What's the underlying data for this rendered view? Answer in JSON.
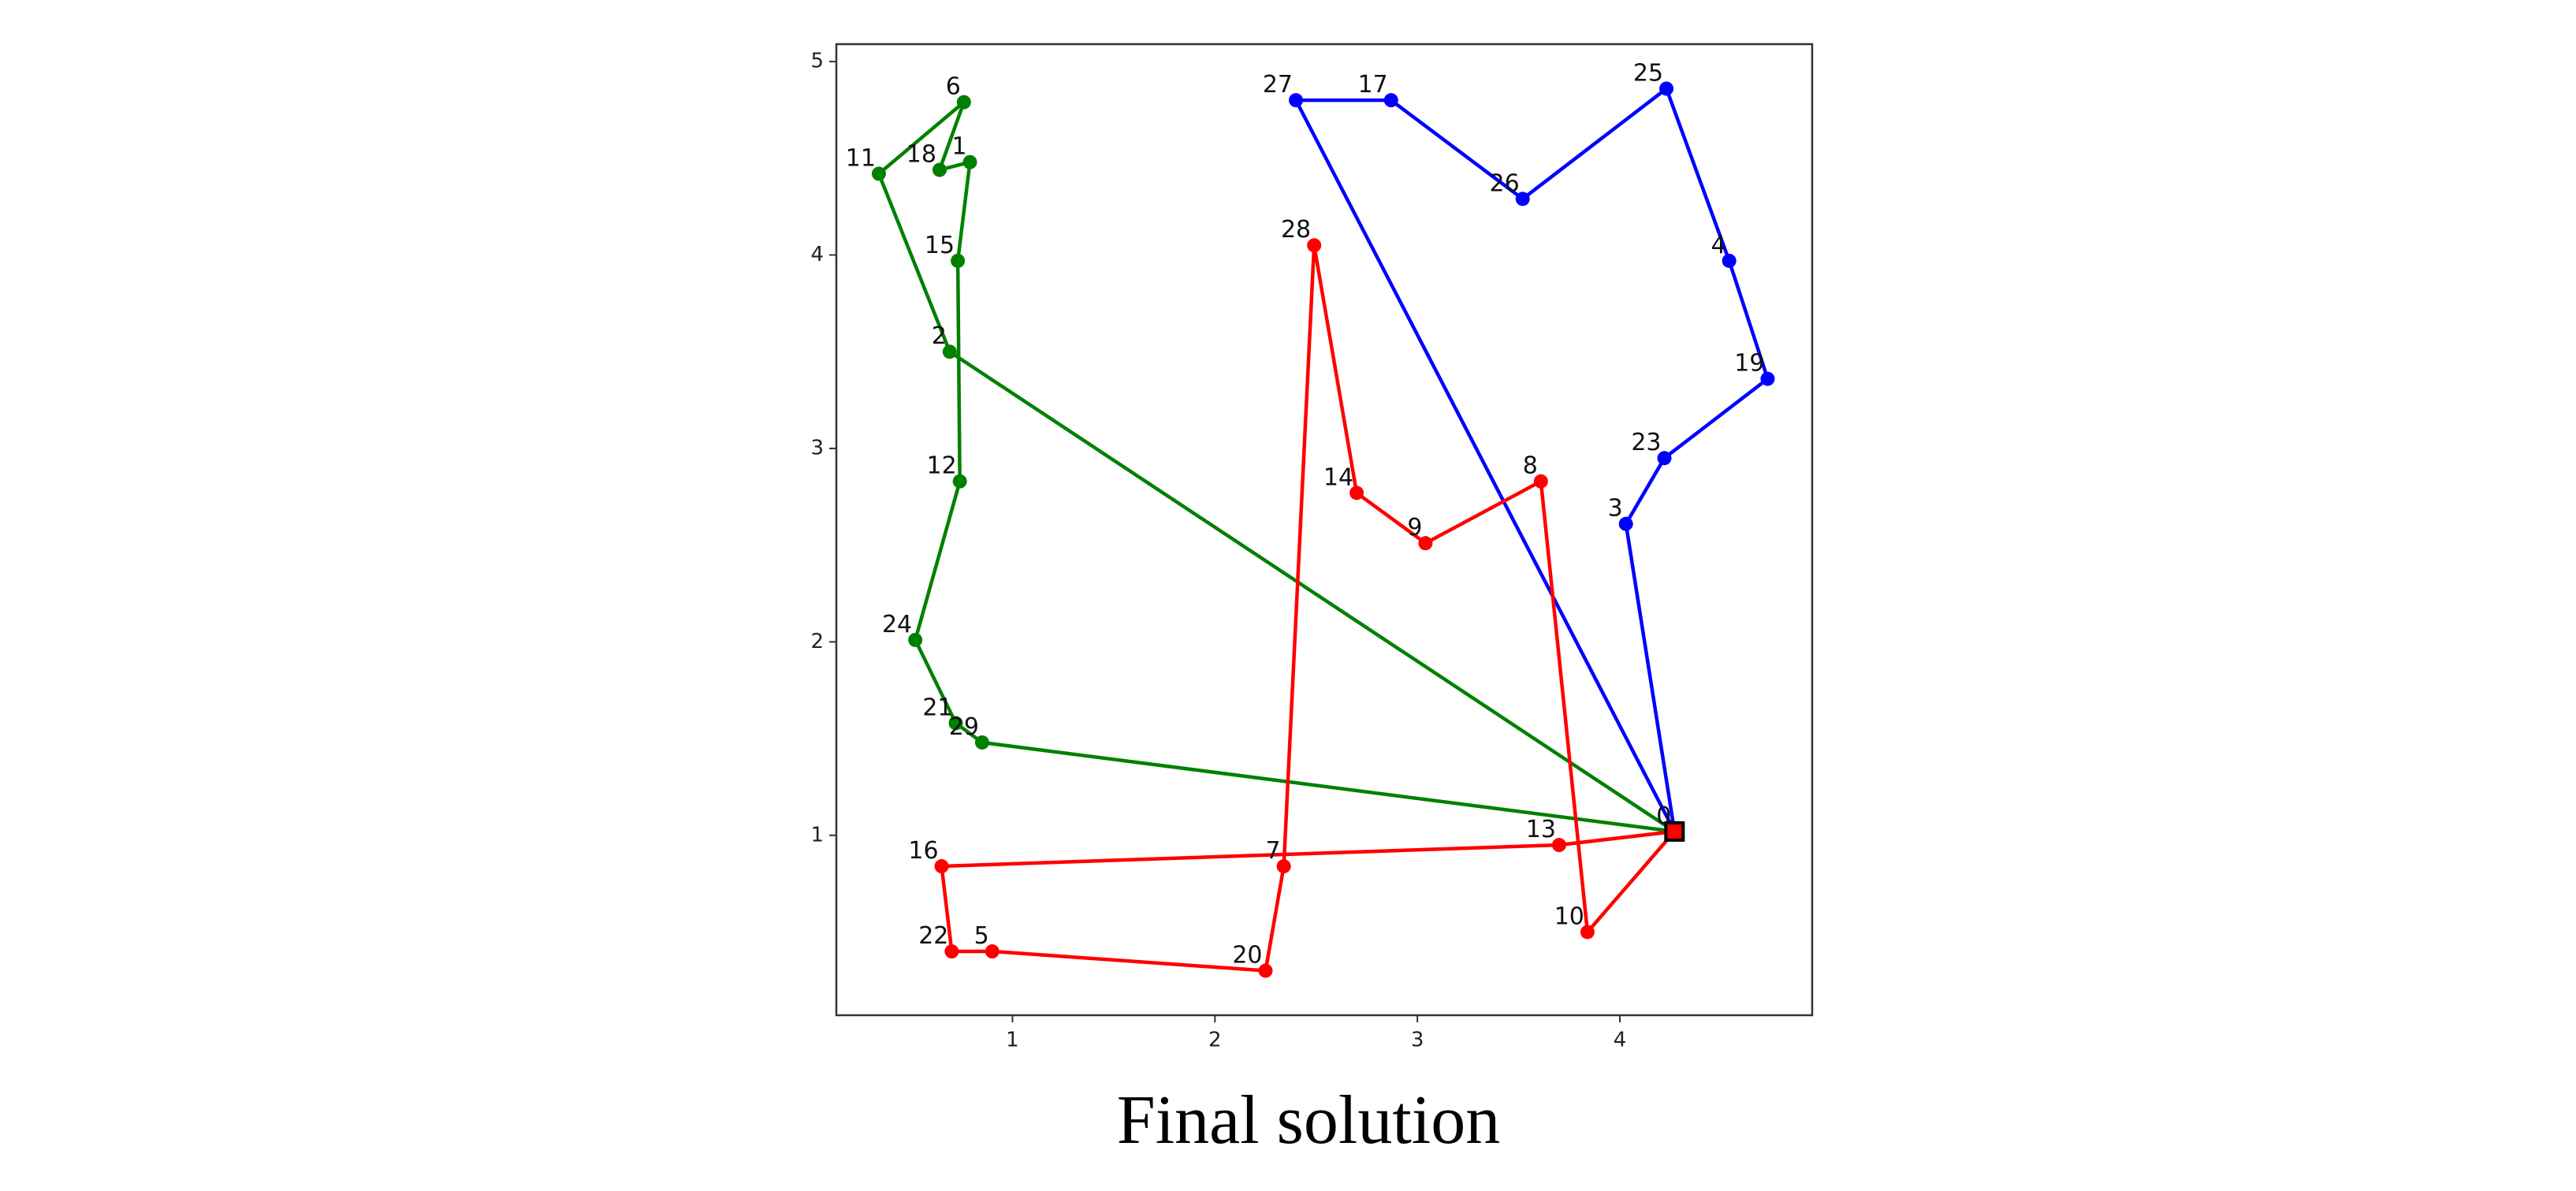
{
  "chart_data": {
    "type": "route",
    "caption": "Final solution",
    "xlim": [
      0.13,
      4.95
    ],
    "ylim": [
      0.07,
      5.09
    ],
    "xticks": [
      1,
      2,
      3,
      4
    ],
    "yticks": [
      1,
      2,
      3,
      4,
      5
    ],
    "grid": false,
    "depot": {
      "label": "0",
      "x": 4.27,
      "y": 1.02,
      "color": "#ff0000"
    },
    "series": [
      {
        "color": "#008000",
        "labels": [
          "2",
          "11",
          "6",
          "18",
          "1",
          "15",
          "12",
          "24",
          "21",
          "29"
        ],
        "x": [
          0.69,
          0.34,
          0.76,
          0.64,
          0.79,
          0.73,
          0.74,
          0.52,
          0.72,
          0.85
        ],
        "y": [
          3.5,
          4.42,
          4.79,
          4.44,
          4.48,
          3.97,
          2.83,
          2.01,
          1.58,
          1.48
        ]
      },
      {
        "color": "#0000ff",
        "labels": [
          "3",
          "23",
          "19",
          "4",
          "25",
          "26",
          "17",
          "27"
        ],
        "x": [
          4.03,
          4.22,
          4.73,
          4.54,
          4.23,
          3.52,
          2.87,
          2.4
        ],
        "y": [
          2.61,
          2.95,
          3.36,
          3.97,
          4.86,
          4.29,
          4.8,
          4.8
        ]
      },
      {
        "color": "#ff0000",
        "labels": [
          "10",
          "8",
          "9",
          "14",
          "28",
          "7",
          "20",
          "5",
          "22",
          "16",
          "13"
        ],
        "x": [
          3.84,
          3.61,
          3.04,
          2.7,
          2.49,
          2.34,
          2.25,
          0.9,
          0.7,
          0.65,
          3.7
        ],
        "y": [
          0.5,
          2.83,
          2.51,
          2.77,
          4.05,
          0.84,
          0.3,
          0.4,
          0.4,
          0.84,
          0.95
        ]
      }
    ]
  }
}
